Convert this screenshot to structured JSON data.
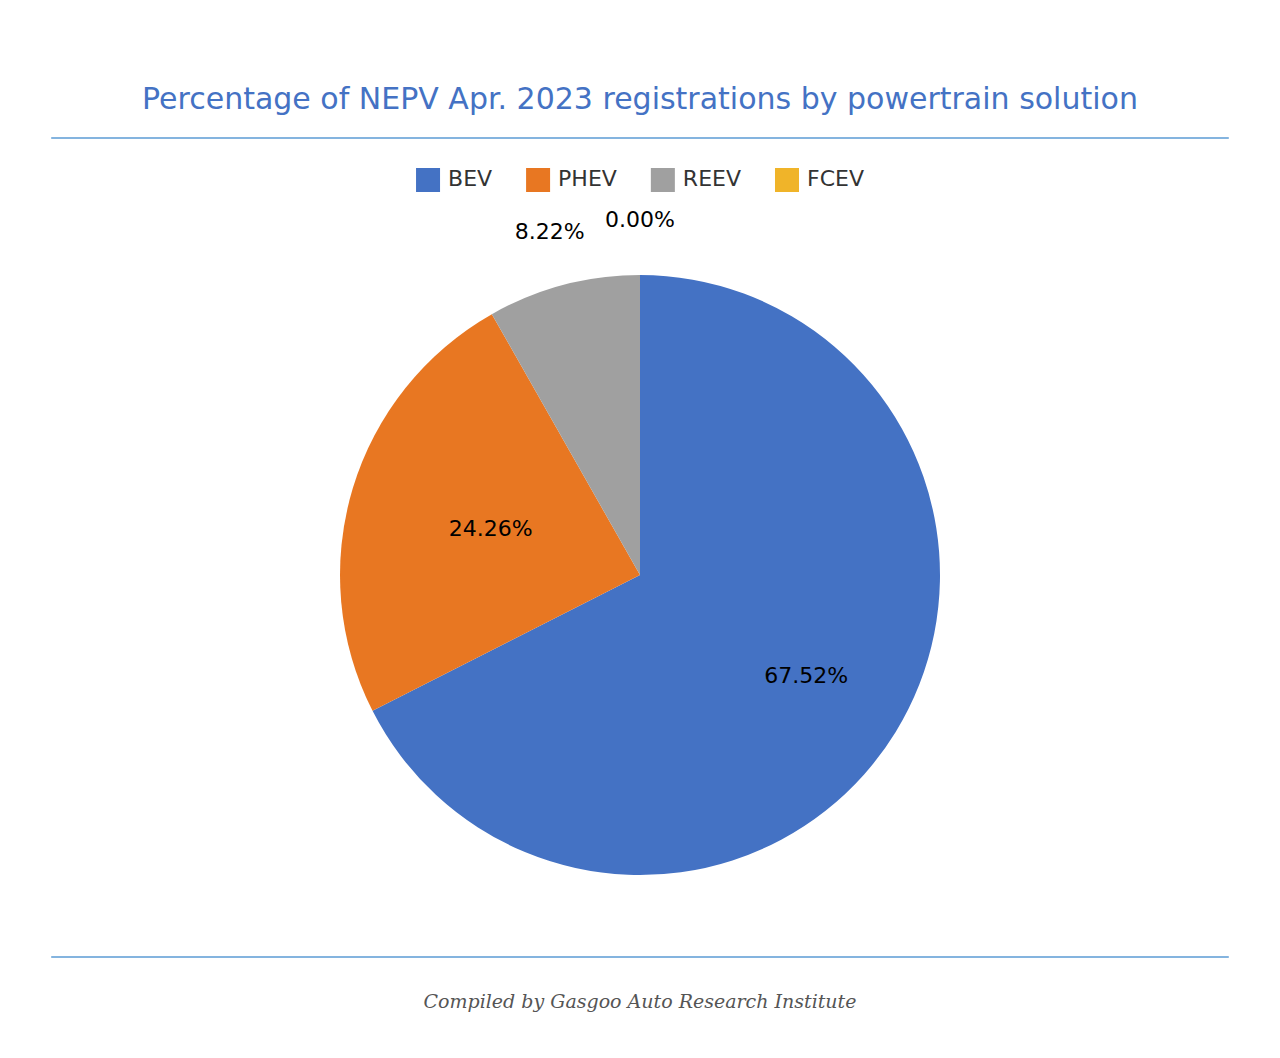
{
  "chart_data": {
    "type": "pie",
    "title": "Percentage of NEPV Apr. 2023 registrations by powertrain solution",
    "categories": [
      "BEV",
      "PHEV",
      "REEV",
      "FCEV"
    ],
    "values": [
      67.52,
      24.26,
      8.22,
      0.0
    ],
    "value_labels": [
      "67.52%",
      "24.26%",
      "8.22%",
      "0.00%"
    ],
    "colors": [
      "#4472c4",
      "#e87722",
      "#a0a0a0",
      "#f0b429"
    ],
    "data_labels": true,
    "legend": "top",
    "annotations": [
      "Compiled by Gasgoo Auto Research Institute"
    ]
  }
}
